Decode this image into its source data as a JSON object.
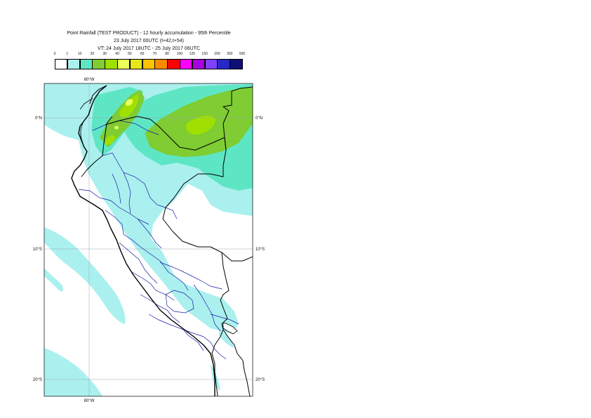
{
  "title_lines": [
    "Point Rainfall (TEST PRODUCT) - 12 hourly accumulation - 95th Percentile",
    "23 July 2017 00UTC (t+42,t+54)",
    "VT: 24 July 2017 18UTC - 25 July 2017 06UTC"
  ],
  "legend": {
    "labels": [
      "0",
      "1",
      "10",
      "20",
      "30",
      "40",
      "50",
      "60",
      "70",
      "80",
      "100",
      "125",
      "150",
      "200",
      "300",
      "500"
    ],
    "colors": [
      "#ffffff",
      "#aaf0ee",
      "#5ee6c4",
      "#7fcc33",
      "#a0e000",
      "#e8ff5a",
      "#e6e61a",
      "#ffc400",
      "#ff8800",
      "#ff0000",
      "#ff00ff",
      "#a800e0",
      "#8040ff",
      "#2828c8",
      "#0f0f78"
    ]
  },
  "axes": {
    "lon_top": "80°W",
    "lon_bottom": "80°W",
    "lat_right": [
      "0°N",
      "10°S",
      "20°S"
    ],
    "lat_left": [
      "0°N",
      "10°S",
      "20°S"
    ]
  },
  "colors": {
    "coast": "#000000",
    "national_border": "#000000",
    "regional_border": "#1a1aa8",
    "gridline": "#9aa6b2"
  }
}
